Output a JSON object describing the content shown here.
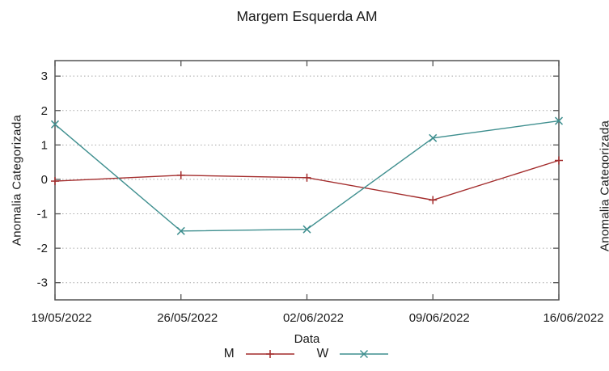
{
  "page": {
    "background": "#ffffff"
  },
  "colors": {
    "axis": "#545454",
    "grid": "#a8a8a8",
    "text": "#1a1a1a"
  },
  "chart_data": {
    "type": "line",
    "title": "Margem Esquerda AM",
    "xlabel": "Data",
    "ylabel": "Anomalia Categorizada",
    "x_tick_labels": [
      "19/05/2022",
      "26/05/2022",
      "02/06/2022",
      "09/06/2022",
      "16/06/2022"
    ],
    "y_ticks": [
      -3,
      -2,
      -1,
      0,
      1,
      2,
      3
    ],
    "ylim": [
      -3.5,
      3.45
    ],
    "grid": "horizontal-dotted",
    "legend_position": "bottom-center",
    "series": [
      {
        "name": "M",
        "color": "#a32c2c",
        "marker": "plus",
        "values": [
          -0.05,
          0.12,
          0.05,
          -0.6,
          0.55
        ]
      },
      {
        "name": "W",
        "color": "#3f8f8f",
        "marker": "cross",
        "values": [
          1.6,
          -1.5,
          -1.45,
          1.2,
          1.7
        ]
      }
    ]
  },
  "adjacent_chart": {
    "ylabel": "Anomalia Categorizada"
  }
}
